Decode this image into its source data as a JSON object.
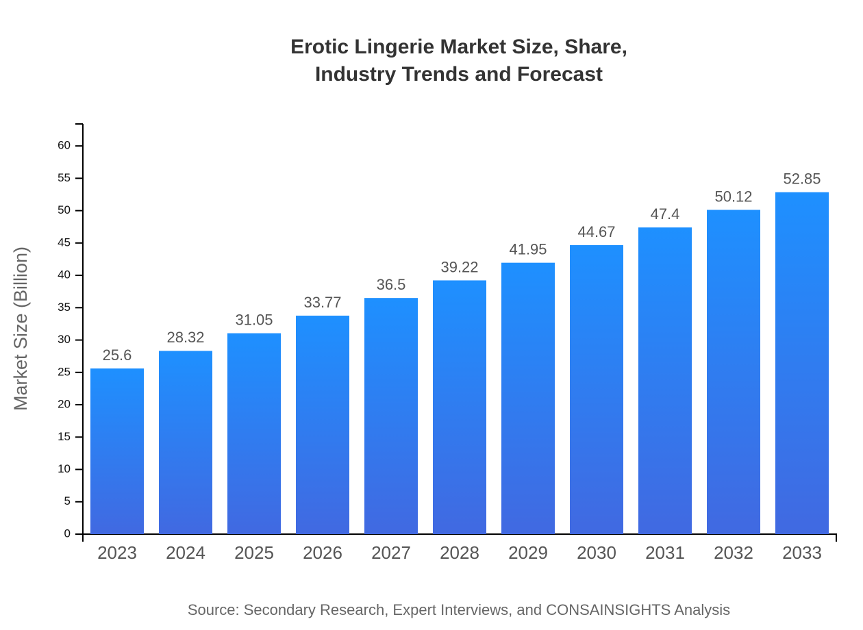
{
  "chart_data": {
    "type": "bar",
    "title": [
      "Erotic Lingerie Market Size, Share,",
      "Industry Trends and Forecast"
    ],
    "y_label": "Market Size (Billion)",
    "source": "Source: Secondary Research, Expert Interviews, and CONSAINSIGHTS Analysis",
    "categories": [
      "2023",
      "2024",
      "2025",
      "2026",
      "2027",
      "2028",
      "2029",
      "2030",
      "2031",
      "2032",
      "2033"
    ],
    "values": [
      25.6,
      28.32,
      31.05,
      33.77,
      36.5,
      39.22,
      41.95,
      44.67,
      47.4,
      50.12,
      52.85
    ],
    "gradient": [
      "#1E90FF",
      "#4169E1"
    ],
    "ylim": [
      0,
      63.4
    ],
    "yticks": [
      0,
      5,
      10,
      15,
      20,
      25,
      30,
      35,
      40,
      45,
      50,
      55,
      60
    ],
    "grid": false
  }
}
